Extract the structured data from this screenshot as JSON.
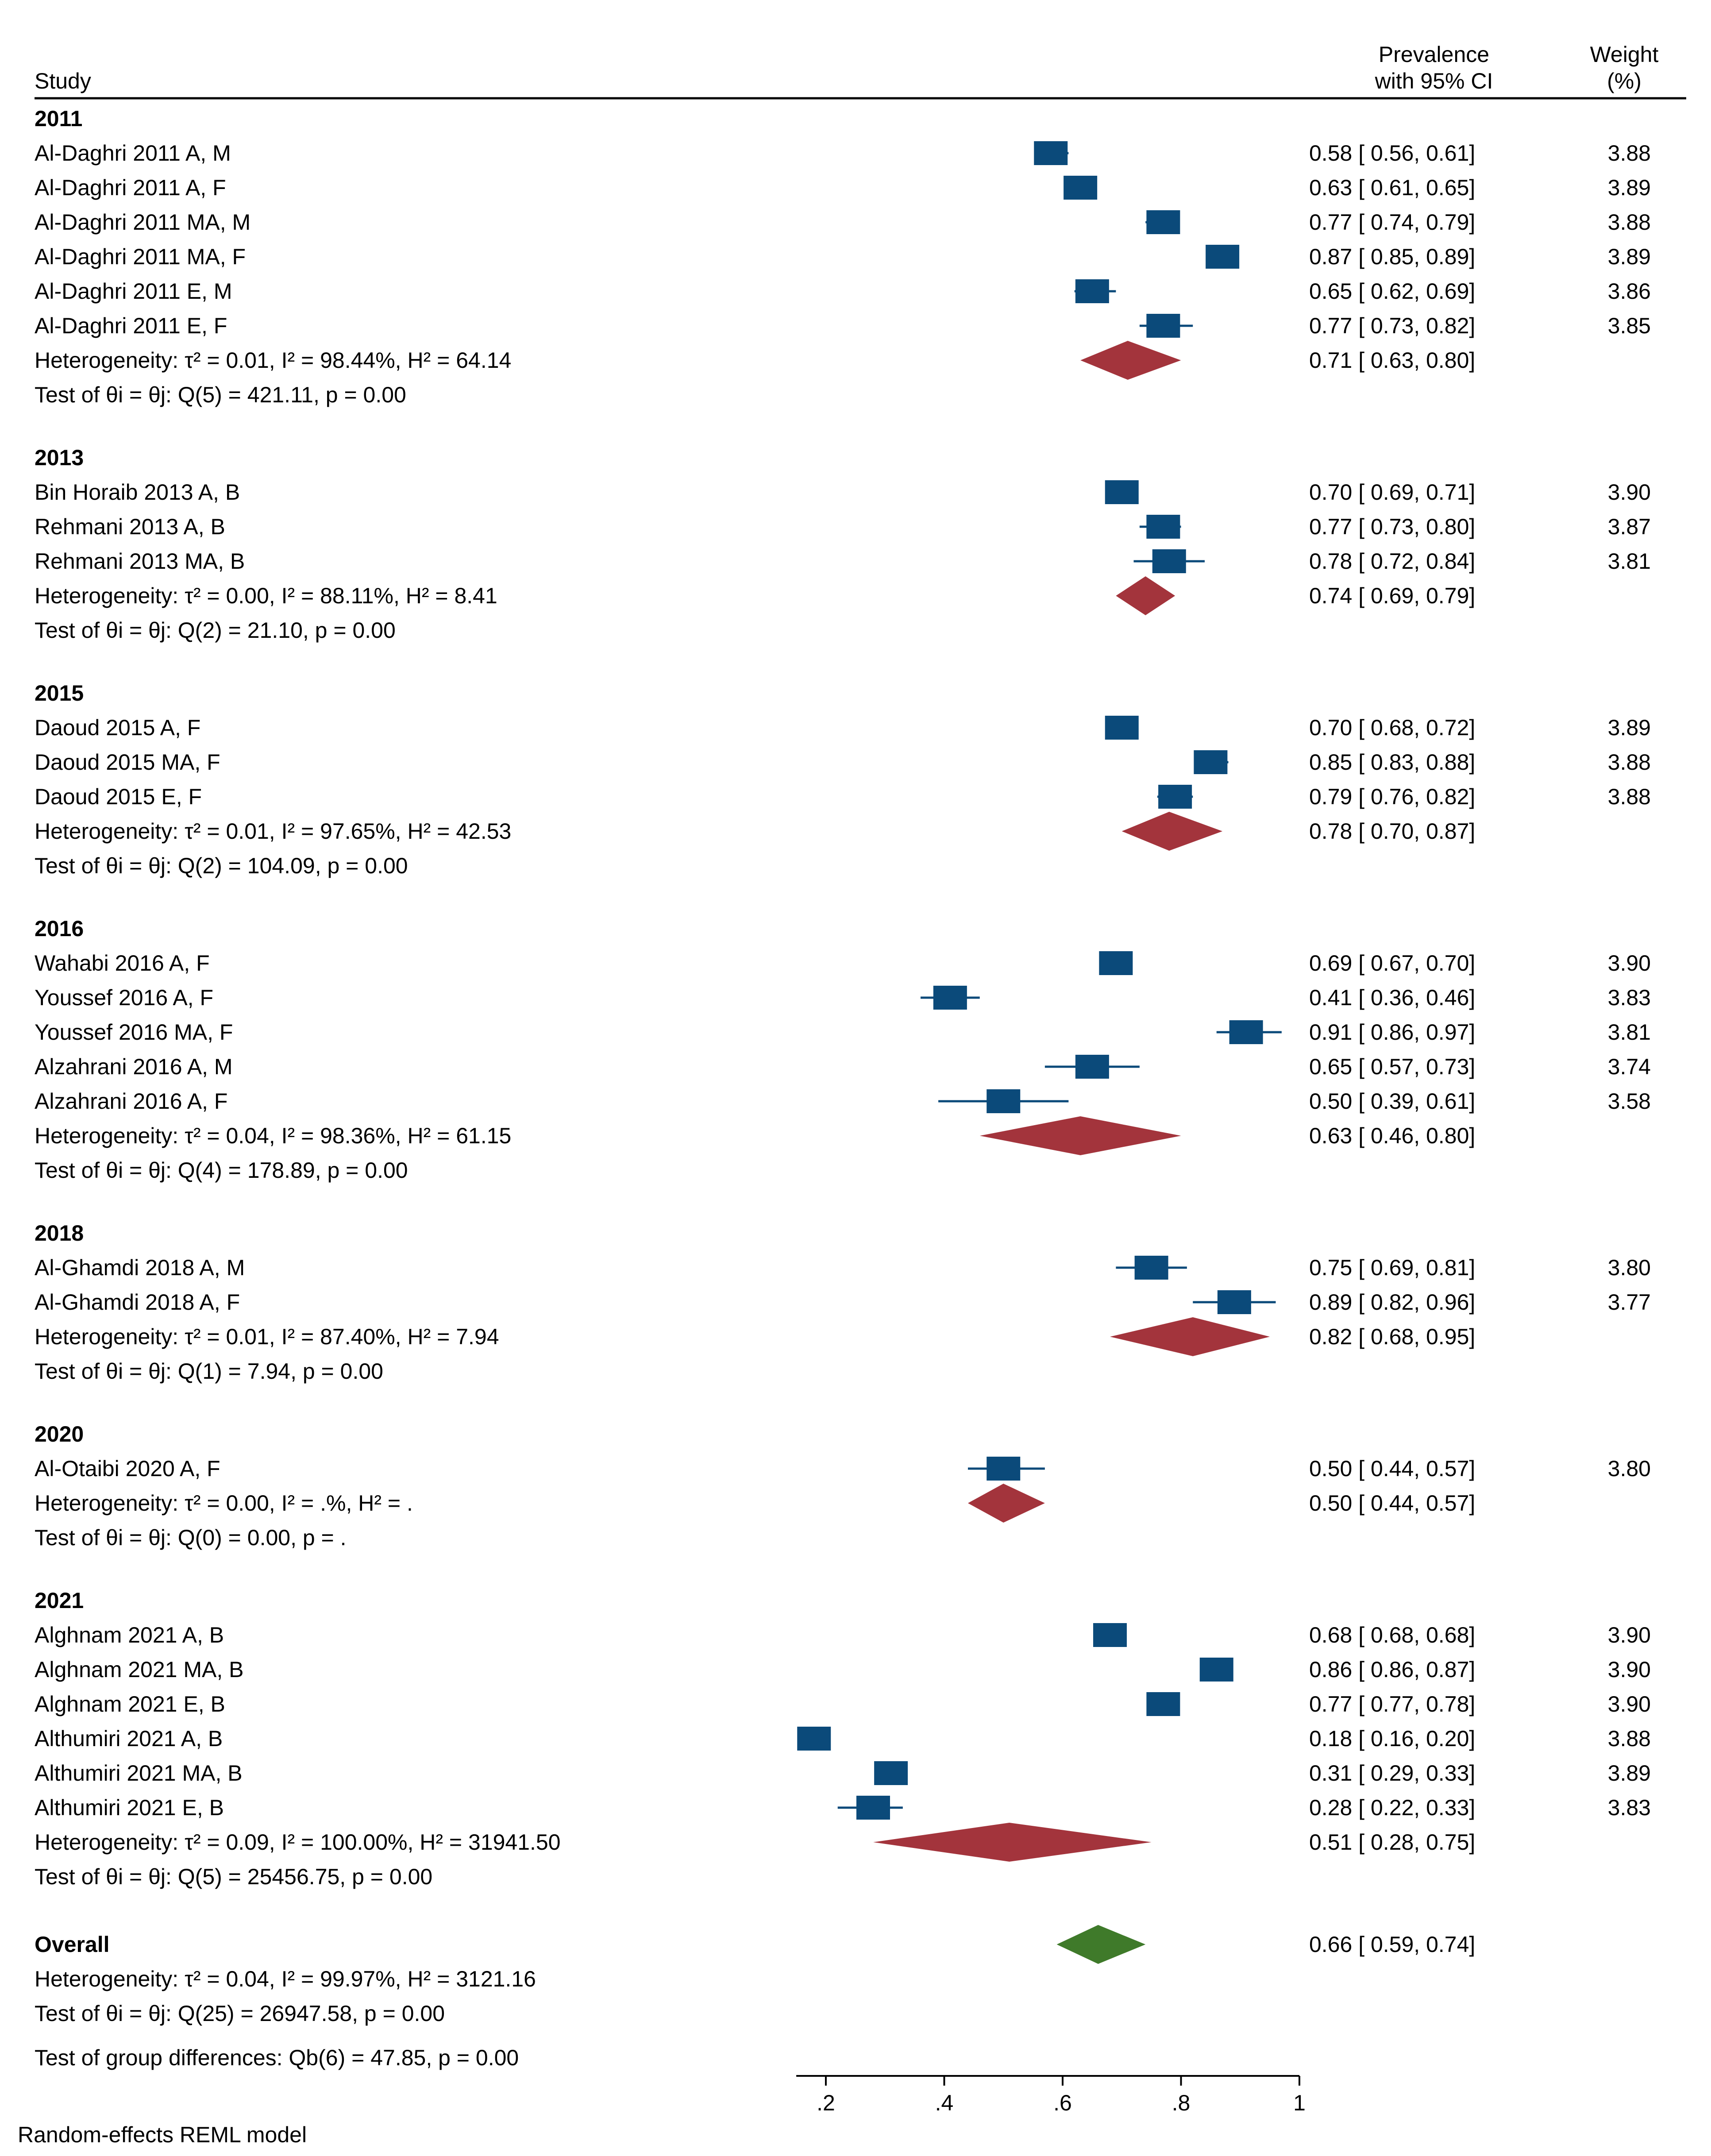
{
  "chart_data": {
    "type": "forest",
    "title": "",
    "columns": {
      "study": "Study",
      "effect": [
        "Prevalence",
        "with 95% CI"
      ],
      "weight": [
        "Weight",
        "(%)"
      ]
    },
    "xlim": [
      0.15,
      1.0
    ],
    "xticks": [
      0.2,
      0.4,
      0.6,
      0.8,
      1.0
    ],
    "xtick_labels": [
      ".2",
      ".4",
      ".6",
      ".8",
      "1"
    ],
    "footnote": "Random-effects REML model",
    "colors": {
      "study_marker": "#0b4a7a",
      "subgroup_diamond": "#a3343c",
      "overall_diamond": "#3f7a2a",
      "text": "#000000"
    },
    "groups": [
      {
        "label": "2011",
        "studies": [
          {
            "name": "Al-Daghri 2011 A, M",
            "est": 0.58,
            "lo": 0.56,
            "hi": 0.61,
            "ci_text": "0.58 [ 0.56,  0.61]",
            "weight": "3.88"
          },
          {
            "name": "Al-Daghri 2011 A, F",
            "est": 0.63,
            "lo": 0.61,
            "hi": 0.65,
            "ci_text": "0.63 [ 0.61,  0.65]",
            "weight": "3.89"
          },
          {
            "name": "Al-Daghri 2011 MA, M",
            "est": 0.77,
            "lo": 0.74,
            "hi": 0.79,
            "ci_text": "0.77 [ 0.74,  0.79]",
            "weight": "3.88"
          },
          {
            "name": "Al-Daghri 2011 MA, F",
            "est": 0.87,
            "lo": 0.85,
            "hi": 0.89,
            "ci_text": "0.87 [ 0.85,  0.89]",
            "weight": "3.89"
          },
          {
            "name": "Al-Daghri 2011 E, M",
            "est": 0.65,
            "lo": 0.62,
            "hi": 0.69,
            "ci_text": "0.65 [ 0.62,  0.69]",
            "weight": "3.86"
          },
          {
            "name": "Al-Daghri 2011 E, F",
            "est": 0.77,
            "lo": 0.73,
            "hi": 0.82,
            "ci_text": "0.77 [ 0.73,  0.82]",
            "weight": "3.85"
          }
        ],
        "het": {
          "prefix": "Heterogeneity: ",
          "rest": " = 0.01, I² = 98.44%, H² = 64.14"
        },
        "pooled": {
          "est": 0.71,
          "lo": 0.63,
          "hi": 0.8,
          "ci_text": "0.71 [ 0.63,  0.80]"
        },
        "test": {
          "prefix": "Test of ",
          "rest": ": Q(5) = 421.11, p = 0.00"
        }
      },
      {
        "label": "2013",
        "studies": [
          {
            "name": "Bin Horaib 2013 A, B",
            "est": 0.7,
            "lo": 0.69,
            "hi": 0.71,
            "ci_text": "0.70 [ 0.69,  0.71]",
            "weight": "3.90"
          },
          {
            "name": "Rehmani 2013 A, B",
            "est": 0.77,
            "lo": 0.73,
            "hi": 0.8,
            "ci_text": "0.77 [ 0.73,  0.80]",
            "weight": "3.87"
          },
          {
            "name": "Rehmani 2013 MA, B",
            "est": 0.78,
            "lo": 0.72,
            "hi": 0.84,
            "ci_text": "0.78 [ 0.72,  0.84]",
            "weight": "3.81"
          }
        ],
        "het": {
          "prefix": "Heterogeneity: ",
          "rest": " = 0.00, I² = 88.11%, H² = 8.41"
        },
        "pooled": {
          "est": 0.74,
          "lo": 0.69,
          "hi": 0.79,
          "ci_text": "0.74 [ 0.69,  0.79]"
        },
        "test": {
          "prefix": "Test of ",
          "rest": ": Q(2) = 21.10, p = 0.00"
        }
      },
      {
        "label": "2015",
        "studies": [
          {
            "name": "Daoud 2015 A, F",
            "est": 0.7,
            "lo": 0.68,
            "hi": 0.72,
            "ci_text": "0.70 [ 0.68,  0.72]",
            "weight": "3.89"
          },
          {
            "name": "Daoud 2015 MA, F",
            "est": 0.85,
            "lo": 0.83,
            "hi": 0.88,
            "ci_text": "0.85 [ 0.83,  0.88]",
            "weight": "3.88"
          },
          {
            "name": "Daoud 2015 E, F",
            "est": 0.79,
            "lo": 0.76,
            "hi": 0.82,
            "ci_text": "0.79 [ 0.76,  0.82]",
            "weight": "3.88"
          }
        ],
        "het": {
          "prefix": "Heterogeneity: ",
          "rest": " = 0.01, I² = 97.65%, H² = 42.53"
        },
        "pooled": {
          "est": 0.78,
          "lo": 0.7,
          "hi": 0.87,
          "ci_text": "0.78 [ 0.70,  0.87]"
        },
        "test": {
          "prefix": "Test of ",
          "rest": ": Q(2) = 104.09, p = 0.00"
        }
      },
      {
        "label": "2016",
        "studies": [
          {
            "name": "Wahabi 2016 A, F",
            "est": 0.69,
            "lo": 0.67,
            "hi": 0.7,
            "ci_text": "0.69 [ 0.67,  0.70]",
            "weight": "3.90"
          },
          {
            "name": "Youssef 2016 A, F",
            "est": 0.41,
            "lo": 0.36,
            "hi": 0.46,
            "ci_text": "0.41 [ 0.36,  0.46]",
            "weight": "3.83"
          },
          {
            "name": "Youssef 2016 MA, F",
            "est": 0.91,
            "lo": 0.86,
            "hi": 0.97,
            "ci_text": "0.91 [ 0.86,  0.97]",
            "weight": "3.81"
          },
          {
            "name": "Alzahrani 2016 A, M",
            "est": 0.65,
            "lo": 0.57,
            "hi": 0.73,
            "ci_text": "0.65 [ 0.57,  0.73]",
            "weight": "3.74"
          },
          {
            "name": "Alzahrani 2016 A, F",
            "est": 0.5,
            "lo": 0.39,
            "hi": 0.61,
            "ci_text": "0.50 [ 0.39,  0.61]",
            "weight": "3.58"
          }
        ],
        "het": {
          "prefix": "Heterogeneity: ",
          "rest": " = 0.04, I² = 98.36%, H² = 61.15"
        },
        "pooled": {
          "est": 0.63,
          "lo": 0.46,
          "hi": 0.8,
          "ci_text": "0.63 [ 0.46,  0.80]"
        },
        "test": {
          "prefix": "Test of ",
          "rest": ": Q(4) = 178.89, p = 0.00"
        }
      },
      {
        "label": "2018",
        "studies": [
          {
            "name": "Al-Ghamdi 2018 A, M",
            "est": 0.75,
            "lo": 0.69,
            "hi": 0.81,
            "ci_text": "0.75 [ 0.69,  0.81]",
            "weight": "3.80"
          },
          {
            "name": "Al-Ghamdi 2018 A, F",
            "est": 0.89,
            "lo": 0.82,
            "hi": 0.96,
            "ci_text": "0.89 [ 0.82,  0.96]",
            "weight": "3.77"
          }
        ],
        "het": {
          "prefix": "Heterogeneity: ",
          "rest": " = 0.01, I² = 87.40%, H² = 7.94"
        },
        "pooled": {
          "est": 0.82,
          "lo": 0.68,
          "hi": 0.95,
          "ci_text": "0.82 [ 0.68,  0.95]"
        },
        "test": {
          "prefix": "Test of ",
          "rest": ": Q(1) = 7.94, p = 0.00"
        }
      },
      {
        "label": "2020",
        "studies": [
          {
            "name": "Al-Otaibi 2020 A, F",
            "est": 0.5,
            "lo": 0.44,
            "hi": 0.57,
            "ci_text": "0.50 [ 0.44,  0.57]",
            "weight": "3.80"
          }
        ],
        "het": {
          "prefix": "Heterogeneity: ",
          "rest": " = 0.00, I² = .%, H² = ."
        },
        "pooled": {
          "est": 0.5,
          "lo": 0.44,
          "hi": 0.57,
          "ci_text": "0.50 [ 0.44,  0.57]"
        },
        "test": {
          "prefix": "Test of ",
          "rest": ": Q(0) = 0.00, p = ."
        }
      },
      {
        "label": "2021",
        "studies": [
          {
            "name": "Alghnam 2021 A, B",
            "est": 0.68,
            "lo": 0.68,
            "hi": 0.68,
            "ci_text": "0.68 [ 0.68,  0.68]",
            "weight": "3.90"
          },
          {
            "name": "Alghnam 2021 MA, B",
            "est": 0.86,
            "lo": 0.86,
            "hi": 0.87,
            "ci_text": "0.86 [ 0.86,  0.87]",
            "weight": "3.90"
          },
          {
            "name": "Alghnam 2021 E, B",
            "est": 0.77,
            "lo": 0.77,
            "hi": 0.78,
            "ci_text": "0.77 [ 0.77,  0.78]",
            "weight": "3.90"
          },
          {
            "name": "Althumiri 2021 A, B",
            "est": 0.18,
            "lo": 0.16,
            "hi": 0.2,
            "ci_text": "0.18 [ 0.16,  0.20]",
            "weight": "3.88"
          },
          {
            "name": "Althumiri 2021 MA, B",
            "est": 0.31,
            "lo": 0.29,
            "hi": 0.33,
            "ci_text": "0.31 [ 0.29,  0.33]",
            "weight": "3.89"
          },
          {
            "name": "Althumiri 2021 E, B",
            "est": 0.28,
            "lo": 0.22,
            "hi": 0.33,
            "ci_text": "0.28 [ 0.22,  0.33]",
            "weight": "3.83"
          }
        ],
        "het": {
          "prefix": "Heterogeneity: ",
          "rest": " = 0.09, I² = 100.00%, H² = 31941.50"
        },
        "pooled": {
          "est": 0.51,
          "lo": 0.28,
          "hi": 0.75,
          "ci_text": "0.51 [ 0.28,  0.75]"
        },
        "test": {
          "prefix": "Test of ",
          "rest": ": Q(5) = 25456.75, p = 0.00"
        }
      }
    ],
    "overall": {
      "label": "Overall",
      "est": 0.66,
      "lo": 0.59,
      "hi": 0.74,
      "ci_text": "0.66 [ 0.59,  0.74]",
      "het": {
        "prefix": "Heterogeneity: ",
        "rest": " = 0.04, I² = 99.97%, H² = 3121.16"
      },
      "test": {
        "prefix": "Test of ",
        "rest": ": Q(25) = 26947.58, p = 0.00"
      },
      "group_diff": "Test of group differences: Qb(6) = 47.85, p = 0.00"
    },
    "symbols": {
      "tau2": "τ²",
      "theta_eq": "θi = θj"
    }
  }
}
